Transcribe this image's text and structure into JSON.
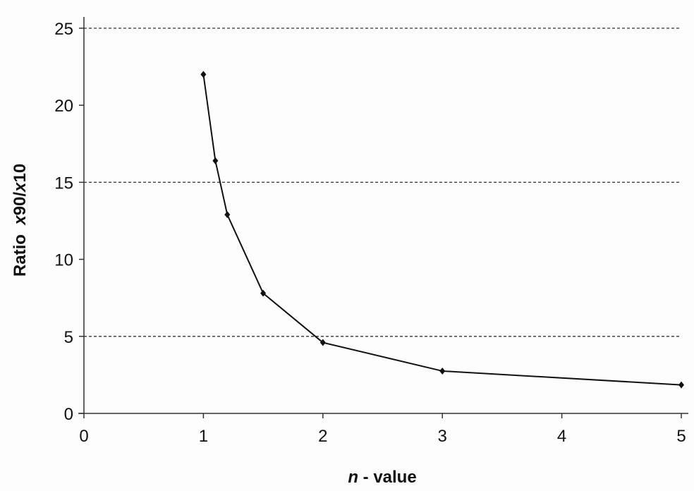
{
  "chart_data": {
    "type": "line",
    "title": "",
    "xlabel_italic": "n",
    "xlabel_rest": " - value",
    "ylabel_prefix": "Ratio  ",
    "ylabel_x1": "x",
    "ylabel_mid": "90/",
    "ylabel_x2": "x",
    "ylabel_end": "10",
    "xlim": [
      0,
      5
    ],
    "ylim": [
      0,
      25
    ],
    "xticks": [
      0,
      1,
      2,
      3,
      4,
      5
    ],
    "yticks": [
      0,
      5,
      10,
      15,
      20,
      25
    ],
    "dashed_gridlines_y": [
      5,
      15,
      25
    ],
    "series": [
      {
        "name": "Ratio x90/x10",
        "color": "#111111",
        "x": [
          1.0,
          1.1,
          1.2,
          1.5,
          2.0,
          3.0,
          5.0
        ],
        "y": [
          22.0,
          16.4,
          12.9,
          7.8,
          4.6,
          2.75,
          1.85
        ]
      }
    ]
  }
}
